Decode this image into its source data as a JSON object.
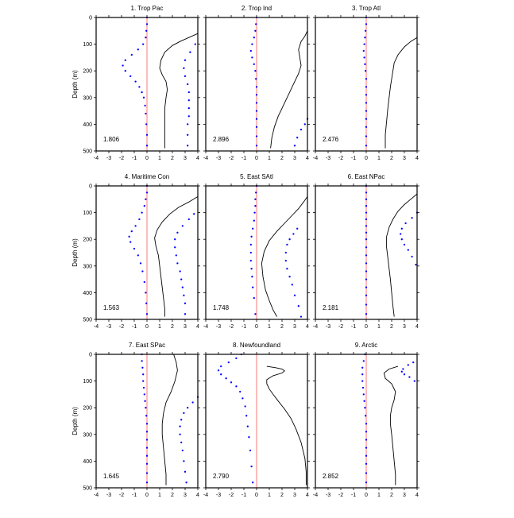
{
  "figure": {
    "ylabel": "Depth (m)"
  },
  "colors": {
    "profile": "#000000",
    "dotted": "#0000ff",
    "zero_line": "#ff6b6b",
    "frame": "#000000"
  },
  "chart_data": [
    {
      "type": "line",
      "title": "1. Trop Pac",
      "value_label": "1.806",
      "xlim": [
        -4,
        4
      ],
      "ylim": [
        500,
        0
      ],
      "x_ticks": [
        -4,
        -3,
        -2,
        -1,
        0,
        1,
        2,
        3,
        4
      ],
      "y_ticks": [
        0,
        100,
        200,
        300,
        400,
        500
      ],
      "series": [
        {
          "style": "solid",
          "x": [
            4.0,
            3.3,
            2.6,
            2.0,
            1.4,
            1.1,
            1.0,
            1.2,
            1.5,
            1.6,
            1.5,
            1.4,
            1.4,
            1.4,
            1.4,
            1.4
          ],
          "y": [
            60,
            75,
            90,
            105,
            130,
            160,
            190,
            215,
            240,
            270,
            300,
            340,
            380,
            420,
            460,
            490
          ]
        },
        {
          "style": "dotted",
          "x": [
            0.0,
            0.0,
            -0.05,
            -0.1,
            -0.3,
            -0.7,
            -1.2,
            -1.7,
            -1.9,
            -1.7,
            -1.3,
            -0.9,
            -0.6,
            -0.4,
            -0.25,
            -0.15,
            -0.1,
            -0.05,
            0.0,
            0.0
          ],
          "y": [
            0,
            25,
            50,
            75,
            100,
            120,
            140,
            160,
            180,
            200,
            220,
            240,
            260,
            280,
            300,
            330,
            360,
            400,
            440,
            480
          ]
        },
        {
          "style": "dotted",
          "x": [
            3.8,
            3.4,
            3.0,
            2.9,
            3.0,
            3.2,
            3.3,
            3.3,
            3.3,
            3.3,
            3.2,
            3.2,
            3.2
          ],
          "y": [
            100,
            130,
            160,
            190,
            220,
            250,
            280,
            310,
            340,
            370,
            400,
            440,
            480
          ]
        }
      ]
    },
    {
      "type": "line",
      "title": "2. Trop Ind",
      "value_label": "2.896",
      "xlim": [
        -4,
        4
      ],
      "ylim": [
        500,
        0
      ],
      "x_ticks": [
        -4,
        -3,
        -2,
        -1,
        0,
        1,
        2,
        3,
        4
      ],
      "y_ticks": [
        0,
        100,
        200,
        300,
        400,
        500
      ],
      "series": [
        {
          "style": "solid",
          "x": [
            4.0,
            3.8,
            3.5,
            3.3,
            3.4,
            3.5,
            3.3,
            3.0,
            2.7,
            2.4,
            2.1,
            1.7,
            1.4,
            1.2,
            1.1
          ],
          "y": [
            50,
            70,
            90,
            120,
            150,
            180,
            210,
            240,
            270,
            300,
            330,
            370,
            410,
            450,
            490
          ]
        },
        {
          "style": "dotted",
          "x": [
            0.0,
            -0.05,
            -0.1,
            -0.2,
            -0.35,
            -0.45,
            -0.35,
            -0.2,
            -0.1,
            -0.05,
            0.0,
            0.0,
            0.0,
            0.0,
            0.0,
            0.0,
            0.0,
            0.0
          ],
          "y": [
            0,
            25,
            50,
            75,
            100,
            125,
            150,
            175,
            200,
            230,
            260,
            290,
            320,
            350,
            380,
            410,
            445,
            480
          ]
        },
        {
          "style": "dotted",
          "x": [
            4.0,
            3.8,
            3.5,
            3.2,
            3.0
          ],
          "y": [
            380,
            400,
            420,
            450,
            480
          ]
        }
      ]
    },
    {
      "type": "line",
      "title": "3. Trop Atl",
      "value_label": "2.476",
      "xlim": [
        -4,
        4
      ],
      "ylim": [
        500,
        0
      ],
      "x_ticks": [
        -4,
        -3,
        -2,
        -1,
        0,
        1,
        2,
        3,
        4
      ],
      "y_ticks": [
        0,
        100,
        200,
        300,
        400,
        500
      ],
      "series": [
        {
          "style": "solid",
          "x": [
            4.0,
            3.5,
            3.0,
            2.5,
            2.2,
            2.1,
            2.0,
            1.9,
            1.8,
            1.7,
            1.6,
            1.5,
            1.5
          ],
          "y": [
            75,
            90,
            110,
            140,
            170,
            200,
            230,
            260,
            300,
            340,
            390,
            440,
            490
          ]
        },
        {
          "style": "dotted",
          "x": [
            0.0,
            0.0,
            -0.05,
            -0.1,
            -0.15,
            -0.2,
            -0.15,
            -0.1,
            -0.05,
            0.0,
            0.0,
            0.0,
            0.0,
            0.0,
            0.0,
            0.0,
            0.0,
            0.0
          ],
          "y": [
            0,
            25,
            50,
            75,
            100,
            125,
            150,
            175,
            200,
            230,
            260,
            290,
            320,
            350,
            380,
            410,
            445,
            480
          ]
        }
      ]
    },
    {
      "type": "line",
      "title": "4. Maritime Con",
      "value_label": "1.563",
      "xlim": [
        -4,
        4
      ],
      "ylim": [
        500,
        0
      ],
      "x_ticks": [
        -4,
        -3,
        -2,
        -1,
        0,
        1,
        2,
        3,
        4
      ],
      "y_ticks": [
        0,
        100,
        200,
        300,
        400,
        500
      ],
      "series": [
        {
          "style": "solid",
          "x": [
            4.0,
            3.3,
            2.5,
            1.8,
            1.2,
            0.8,
            0.6,
            0.7,
            0.9,
            1.0,
            1.1,
            1.2,
            1.3,
            1.4,
            1.4
          ],
          "y": [
            40,
            60,
            80,
            105,
            135,
            165,
            195,
            225,
            260,
            300,
            340,
            380,
            420,
            460,
            490
          ]
        },
        {
          "style": "dotted",
          "x": [
            0.0,
            0.0,
            -0.1,
            -0.2,
            -0.4,
            -0.6,
            -0.9,
            -1.2,
            -1.4,
            -1.3,
            -1.0,
            -0.7,
            -0.5,
            -0.35,
            -0.2,
            -0.1,
            -0.05,
            0.0
          ],
          "y": [
            0,
            25,
            50,
            75,
            100,
            125,
            150,
            170,
            190,
            210,
            235,
            260,
            290,
            320,
            360,
            400,
            440,
            480
          ]
        },
        {
          "style": "dotted",
          "x": [
            3.7,
            3.3,
            2.8,
            2.4,
            2.2,
            2.2,
            2.3,
            2.4,
            2.6,
            2.7,
            2.8,
            2.9,
            3.0,
            3.0
          ],
          "y": [
            105,
            125,
            150,
            175,
            200,
            230,
            260,
            290,
            320,
            350,
            380,
            410,
            440,
            480
          ]
        }
      ]
    },
    {
      "type": "line",
      "title": "5. East SAtl",
      "value_label": "1.748",
      "xlim": [
        -4,
        4
      ],
      "ylim": [
        500,
        0
      ],
      "x_ticks": [
        -4,
        -3,
        -2,
        -1,
        0,
        1,
        2,
        3,
        4
      ],
      "y_ticks": [
        0,
        100,
        200,
        300,
        400,
        500
      ],
      "series": [
        {
          "style": "solid",
          "x": [
            4.0,
            3.7,
            3.3,
            2.8,
            2.2,
            1.6,
            1.0,
            0.6,
            0.4,
            0.5,
            0.7,
            1.0,
            1.3,
            1.6
          ],
          "y": [
            40,
            60,
            85,
            110,
            140,
            170,
            205,
            245,
            290,
            340,
            390,
            430,
            465,
            490
          ]
        },
        {
          "style": "dotted",
          "x": [
            0.0,
            -0.05,
            -0.1,
            -0.1,
            -0.15,
            -0.2,
            -0.3,
            -0.4,
            -0.45,
            -0.45,
            -0.45,
            -0.4,
            -0.35,
            -0.3,
            -0.2,
            -0.1
          ],
          "y": [
            0,
            25,
            50,
            75,
            100,
            130,
            160,
            190,
            220,
            250,
            280,
            310,
            340,
            380,
            420,
            480
          ]
        },
        {
          "style": "dotted",
          "x": [
            3.2,
            2.9,
            2.6,
            2.4,
            2.3,
            2.3,
            2.4,
            2.6,
            2.8,
            3.0,
            3.3,
            3.5
          ],
          "y": [
            160,
            180,
            200,
            220,
            250,
            280,
            310,
            340,
            370,
            410,
            450,
            490
          ]
        }
      ]
    },
    {
      "type": "line",
      "title": "6. East NPac",
      "value_label": "2.181",
      "xlim": [
        -4,
        4
      ],
      "ylim": [
        500,
        0
      ],
      "x_ticks": [
        -4,
        -3,
        -2,
        -1,
        0,
        1,
        2,
        3,
        4
      ],
      "y_ticks": [
        0,
        100,
        200,
        300,
        400,
        500
      ],
      "series": [
        {
          "style": "solid",
          "x": [
            4.0,
            3.5,
            3.0,
            2.5,
            2.1,
            1.8,
            1.6,
            1.6,
            1.7,
            1.8,
            1.9,
            2.0,
            2.1,
            2.2
          ],
          "y": [
            30,
            50,
            70,
            95,
            125,
            155,
            190,
            230,
            270,
            310,
            350,
            400,
            450,
            490
          ]
        },
        {
          "style": "dotted",
          "x": [
            0.0,
            0.0,
            0.0,
            0.0,
            0.0,
            0.0,
            0.0,
            0.0,
            0.0,
            0.0,
            0.0,
            0.0,
            0.0,
            0.0,
            0.0,
            0.0,
            0.0,
            0.0
          ],
          "y": [
            0,
            25,
            50,
            75,
            100,
            125,
            150,
            175,
            200,
            230,
            260,
            290,
            320,
            350,
            380,
            410,
            445,
            480
          ]
        },
        {
          "style": "dotted",
          "x": [
            4.0,
            3.6,
            3.1,
            2.8,
            2.7,
            2.8,
            3.0,
            3.3,
            3.6,
            3.9
          ],
          "y": [
            100,
            120,
            140,
            160,
            180,
            200,
            220,
            240,
            265,
            295
          ]
        }
      ]
    },
    {
      "type": "line",
      "title": "7. East SPac",
      "value_label": "1.645",
      "xlim": [
        -4,
        4
      ],
      "ylim": [
        500,
        0
      ],
      "x_ticks": [
        -4,
        -3,
        -2,
        -1,
        0,
        1,
        2,
        3,
        4
      ],
      "y_ticks": [
        0,
        100,
        200,
        300,
        400,
        500
      ],
      "series": [
        {
          "style": "solid",
          "x": [
            2.1,
            2.3,
            2.4,
            2.2,
            1.9,
            1.5,
            1.3,
            1.2,
            1.2,
            1.3,
            1.4,
            1.5,
            1.5
          ],
          "y": [
            0,
            30,
            60,
            100,
            140,
            180,
            220,
            260,
            300,
            350,
            400,
            450,
            490
          ]
        },
        {
          "style": "dotted",
          "x": [
            -0.4,
            -0.4,
            -0.35,
            -0.3,
            -0.3,
            -0.25,
            -0.2,
            -0.15,
            -0.1,
            -0.05,
            0.0,
            0.0,
            0.0,
            0.0,
            0.0,
            0.0,
            0.0,
            0.0
          ],
          "y": [
            0,
            25,
            50,
            75,
            100,
            125,
            150,
            175,
            200,
            230,
            260,
            290,
            320,
            350,
            380,
            410,
            445,
            480
          ]
        },
        {
          "style": "dotted",
          "x": [
            4.0,
            3.6,
            3.2,
            2.9,
            2.7,
            2.6,
            2.6,
            2.7,
            2.8,
            2.9,
            3.0,
            3.1
          ],
          "y": [
            160,
            180,
            200,
            220,
            245,
            270,
            300,
            330,
            360,
            400,
            440,
            480
          ]
        }
      ]
    },
    {
      "type": "line",
      "title": "8. Newfoundland",
      "value_label": "2.790",
      "xlim": [
        -4,
        4
      ],
      "ylim": [
        500,
        0
      ],
      "x_ticks": [
        -4,
        -3,
        -2,
        -1,
        0,
        1,
        2,
        3,
        4
      ],
      "y_ticks": [
        0,
        100,
        200,
        300,
        400,
        500
      ],
      "series": [
        {
          "style": "solid",
          "x": [
            0.8,
            1.5,
            2.0,
            2.2,
            2.0,
            1.3,
            0.8,
            0.8,
            1.0,
            1.3,
            1.7,
            2.2,
            2.7,
            3.1,
            3.5,
            3.8,
            3.9,
            3.9
          ],
          "y": [
            45,
            50,
            55,
            62,
            70,
            80,
            95,
            110,
            130,
            150,
            175,
            205,
            240,
            280,
            330,
            390,
            440,
            490
          ]
        },
        {
          "style": "dotted",
          "x": [
            -1.2,
            -1.6,
            -2.2,
            -2.8,
            -3.0,
            -2.8,
            -2.4,
            -2.0,
            -1.6,
            -1.3,
            -1.1,
            -0.9,
            -0.8,
            -0.7,
            -0.6,
            -0.5,
            -0.4,
            -0.3
          ],
          "y": [
            0,
            15,
            30,
            45,
            60,
            75,
            90,
            105,
            120,
            140,
            165,
            195,
            230,
            270,
            310,
            360,
            420,
            480
          ]
        }
      ]
    },
    {
      "type": "line",
      "title": "9. Arctic",
      "value_label": "2.852",
      "xlim": [
        -4,
        4
      ],
      "ylim": [
        500,
        0
      ],
      "x_ticks": [
        -4,
        -3,
        -2,
        -1,
        0,
        1,
        2,
        3,
        4
      ],
      "y_ticks": [
        0,
        100,
        200,
        300,
        400,
        500
      ],
      "series": [
        {
          "style": "solid",
          "x": [
            2.5,
            1.8,
            1.4,
            1.5,
            2.0,
            2.3,
            2.2,
            2.0,
            1.9,
            1.9,
            2.0,
            2.1,
            2.2,
            2.3,
            2.3
          ],
          "y": [
            45,
            55,
            70,
            90,
            110,
            140,
            170,
            200,
            230,
            260,
            300,
            350,
            400,
            450,
            490
          ]
        },
        {
          "style": "dotted",
          "x": [
            -0.1,
            -0.2,
            -0.3,
            -0.3,
            -0.3,
            -0.25,
            -0.2,
            -0.15,
            -0.1,
            -0.05,
            0.0,
            0.0,
            0.0,
            0.0,
            0.0,
            0.0,
            0.0,
            0.0
          ],
          "y": [
            0,
            25,
            50,
            75,
            100,
            125,
            150,
            175,
            200,
            230,
            260,
            290,
            320,
            350,
            380,
            410,
            445,
            480
          ]
        },
        {
          "style": "dotted",
          "x": [
            3.7,
            3.3,
            2.9,
            2.8,
            3.0,
            3.4,
            3.8
          ],
          "y": [
            30,
            40,
            55,
            65,
            75,
            85,
            100
          ]
        }
      ]
    }
  ]
}
